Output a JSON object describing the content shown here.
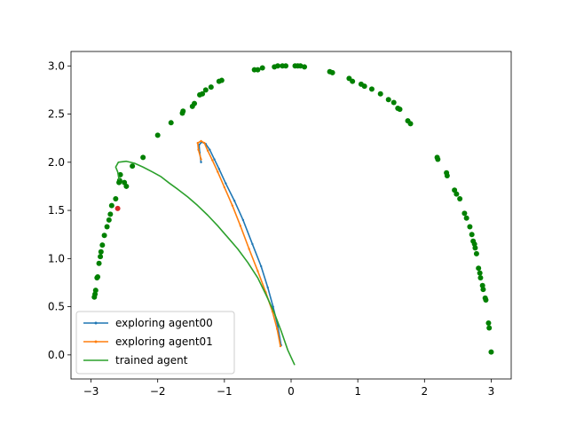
{
  "chart_data": {
    "type": "line",
    "title": "",
    "xlabel": "",
    "ylabel": "",
    "xlim": [
      -3.3,
      3.3
    ],
    "ylim": [
      -0.25,
      3.15
    ],
    "xticks": [
      -3,
      -2,
      -1,
      0,
      1,
      2,
      3
    ],
    "xtick_labels": [
      "−3",
      "−2",
      "−1",
      "0",
      "1",
      "2",
      "3"
    ],
    "yticks": [
      0.0,
      0.5,
      1.0,
      1.5,
      2.0,
      2.5,
      3.0
    ],
    "ytick_labels": [
      "0.0",
      "0.5",
      "1.0",
      "1.5",
      "2.0",
      "2.5",
      "3.0"
    ],
    "grid": false,
    "legend_position": "lower-left",
    "series": [
      {
        "name": "exploring agent00",
        "color": "#1f77b4",
        "marker": "dot",
        "points": [
          [
            -1.35,
            2.0
          ],
          [
            -1.37,
            2.1
          ],
          [
            -1.38,
            2.18
          ],
          [
            -1.34,
            2.21
          ],
          [
            -1.28,
            2.19
          ],
          [
            -1.22,
            2.13
          ],
          [
            -1.15,
            2.03
          ],
          [
            -1.08,
            1.93
          ],
          [
            -0.98,
            1.78
          ],
          [
            -0.85,
            1.6
          ],
          [
            -0.72,
            1.4
          ],
          [
            -0.58,
            1.15
          ],
          [
            -0.45,
            0.92
          ],
          [
            -0.35,
            0.7
          ],
          [
            -0.27,
            0.5
          ],
          [
            -0.2,
            0.3
          ],
          [
            -0.15,
            0.1
          ]
        ]
      },
      {
        "name": "exploring agent01",
        "color": "#ff7f0e",
        "marker": "dot",
        "points": [
          [
            -1.35,
            2.03
          ],
          [
            -1.39,
            2.13
          ],
          [
            -1.4,
            2.2
          ],
          [
            -1.35,
            2.22
          ],
          [
            -1.3,
            2.2
          ],
          [
            -1.25,
            2.12
          ],
          [
            -1.18,
            2.02
          ],
          [
            -1.1,
            1.9
          ],
          [
            -1.0,
            1.74
          ],
          [
            -0.88,
            1.55
          ],
          [
            -0.76,
            1.34
          ],
          [
            -0.63,
            1.1
          ],
          [
            -0.5,
            0.87
          ],
          [
            -0.38,
            0.65
          ],
          [
            -0.28,
            0.45
          ],
          [
            -0.21,
            0.27
          ],
          [
            -0.16,
            0.09
          ]
        ]
      },
      {
        "name": "trained agent",
        "color": "#2ca02c",
        "marker": "none",
        "points": [
          [
            -2.58,
            1.82
          ],
          [
            -2.6,
            1.9
          ],
          [
            -2.63,
            1.95
          ],
          [
            -2.59,
            2.0
          ],
          [
            -2.47,
            2.01
          ],
          [
            -2.35,
            1.99
          ],
          [
            -2.22,
            1.95
          ],
          [
            -2.08,
            1.9
          ],
          [
            -1.95,
            1.85
          ],
          [
            -1.82,
            1.78
          ],
          [
            -1.7,
            1.72
          ],
          [
            -1.55,
            1.64
          ],
          [
            -1.4,
            1.55
          ],
          [
            -1.25,
            1.45
          ],
          [
            -1.1,
            1.34
          ],
          [
            -0.95,
            1.22
          ],
          [
            -0.8,
            1.1
          ],
          [
            -0.65,
            0.96
          ],
          [
            -0.5,
            0.8
          ],
          [
            -0.38,
            0.63
          ],
          [
            -0.26,
            0.45
          ],
          [
            -0.15,
            0.25
          ],
          [
            -0.05,
            0.05
          ],
          [
            0.05,
            -0.1
          ]
        ]
      }
    ],
    "scatter": [
      {
        "color": "#008000",
        "points": [
          [
            -2.95,
            0.6
          ],
          [
            -2.94,
            0.63
          ],
          [
            -2.93,
            0.67
          ],
          [
            -2.91,
            0.8
          ],
          [
            -2.9,
            0.81
          ],
          [
            -2.88,
            0.95
          ],
          [
            -2.86,
            1.02
          ],
          [
            -2.85,
            1.07
          ],
          [
            -2.83,
            1.14
          ],
          [
            -2.8,
            1.24
          ],
          [
            -2.76,
            1.33
          ],
          [
            -2.73,
            1.4
          ],
          [
            -2.71,
            1.46
          ],
          [
            -2.69,
            1.55
          ],
          [
            -2.63,
            1.62
          ],
          [
            -2.58,
            1.79
          ],
          [
            -2.57,
            1.81
          ],
          [
            -2.56,
            1.87
          ],
          [
            -2.5,
            1.79
          ],
          [
            -2.47,
            1.75
          ],
          [
            -2.38,
            1.96
          ],
          [
            -2.22,
            2.05
          ],
          [
            -2.0,
            2.28
          ],
          [
            -1.8,
            2.41
          ],
          [
            -1.63,
            2.51
          ],
          [
            -1.62,
            2.53
          ],
          [
            -1.48,
            2.58
          ],
          [
            -1.45,
            2.61
          ],
          [
            -1.37,
            2.7
          ],
          [
            -1.33,
            2.71
          ],
          [
            -1.28,
            2.75
          ],
          [
            -1.2,
            2.78
          ],
          [
            -1.08,
            2.84
          ],
          [
            -1.04,
            2.85
          ],
          [
            -0.55,
            2.96
          ],
          [
            -0.5,
            2.96
          ],
          [
            -0.43,
            2.98
          ],
          [
            -0.25,
            2.99
          ],
          [
            -0.2,
            3.0
          ],
          [
            -0.13,
            3.0
          ],
          [
            -0.08,
            3.0
          ],
          [
            0.06,
            3.0
          ],
          [
            0.1,
            3.0
          ],
          [
            0.14,
            3.0
          ],
          [
            0.2,
            2.99
          ],
          [
            0.58,
            2.94
          ],
          [
            0.62,
            2.93
          ],
          [
            0.87,
            2.87
          ],
          [
            0.92,
            2.84
          ],
          [
            1.05,
            2.81
          ],
          [
            1.1,
            2.79
          ],
          [
            1.21,
            2.76
          ],
          [
            1.34,
            2.71
          ],
          [
            1.46,
            2.65
          ],
          [
            1.54,
            2.62
          ],
          [
            1.6,
            2.56
          ],
          [
            1.63,
            2.55
          ],
          [
            1.75,
            2.43
          ],
          [
            1.79,
            2.4
          ],
          [
            2.19,
            2.05
          ],
          [
            2.2,
            2.03
          ],
          [
            2.33,
            1.89
          ],
          [
            2.34,
            1.86
          ],
          [
            2.45,
            1.71
          ],
          [
            2.48,
            1.67
          ],
          [
            2.53,
            1.62
          ],
          [
            2.6,
            1.47
          ],
          [
            2.63,
            1.42
          ],
          [
            2.68,
            1.33
          ],
          [
            2.71,
            1.25
          ],
          [
            2.73,
            1.18
          ],
          [
            2.75,
            1.15
          ],
          [
            2.76,
            1.11
          ],
          [
            2.78,
            1.05
          ],
          [
            2.81,
            0.9
          ],
          [
            2.83,
            0.85
          ],
          [
            2.84,
            0.8
          ],
          [
            2.87,
            0.72
          ],
          [
            2.88,
            0.68
          ],
          [
            2.91,
            0.59
          ],
          [
            2.92,
            0.57
          ],
          [
            2.96,
            0.33
          ],
          [
            2.97,
            0.28
          ],
          [
            3.0,
            0.03
          ]
        ]
      },
      {
        "color": "#d62728",
        "points": [
          [
            -2.6,
            1.52
          ]
        ]
      }
    ]
  }
}
